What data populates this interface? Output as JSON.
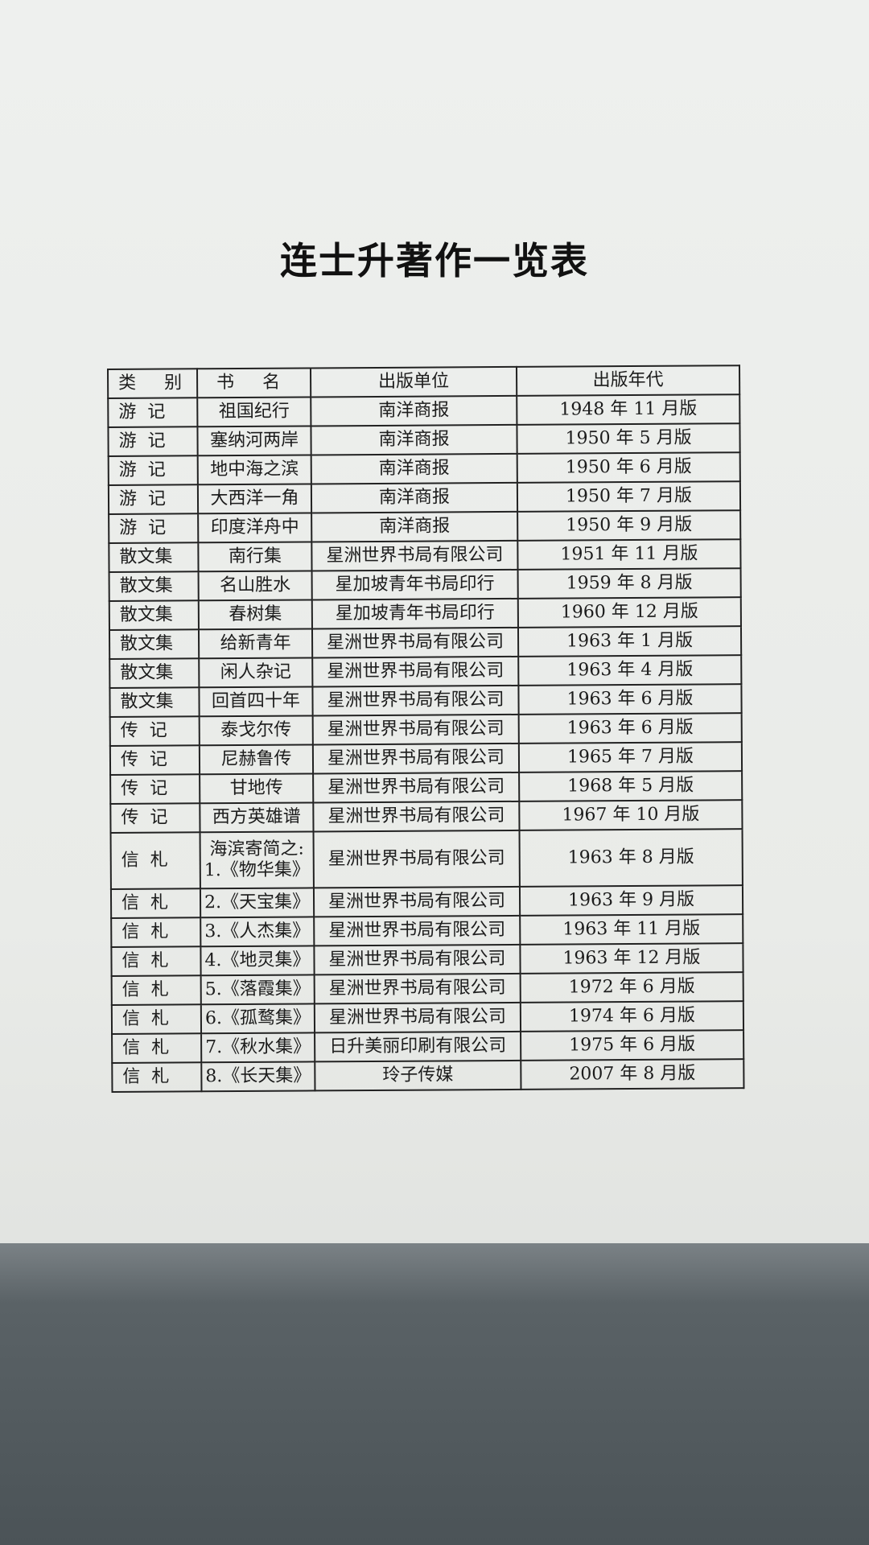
{
  "title": "连士升著作一览表",
  "table": {
    "headers": [
      "类  别",
      "书  名",
      "出版单位",
      "出版年代"
    ],
    "rows": [
      {
        "category": "游记",
        "title": "祖国纪行",
        "publisher": "南洋商报",
        "date": "1948 年 11 月版"
      },
      {
        "category": "游记",
        "title": "塞纳河两岸",
        "publisher": "南洋商报",
        "date": "1950 年 5 月版"
      },
      {
        "category": "游记",
        "title": "地中海之滨",
        "publisher": "南洋商报",
        "date": "1950 年 6 月版"
      },
      {
        "category": "游记",
        "title": "大西洋一角",
        "publisher": "南洋商报",
        "date": "1950 年 7 月版"
      },
      {
        "category": "游记",
        "title": "印度洋舟中",
        "publisher": "南洋商报",
        "date": "1950 年 9 月版"
      },
      {
        "category": "散文集",
        "title": "南行集",
        "publisher": "星洲世界书局有限公司",
        "date": "1951 年 11 月版"
      },
      {
        "category": "散文集",
        "title": "名山胜水",
        "publisher": "星加坡青年书局印行",
        "date": "1959 年 8 月版"
      },
      {
        "category": "散文集",
        "title": "春树集",
        "publisher": "星加坡青年书局印行",
        "date": "1960 年 12 月版"
      },
      {
        "category": "散文集",
        "title": "给新青年",
        "publisher": "星洲世界书局有限公司",
        "date": "1963 年 1 月版"
      },
      {
        "category": "散文集",
        "title": "闲人杂记",
        "publisher": "星洲世界书局有限公司",
        "date": "1963 年 4 月版"
      },
      {
        "category": "散文集",
        "title": "回首四十年",
        "publisher": "星洲世界书局有限公司",
        "date": "1963 年 6 月版"
      },
      {
        "category": "传记",
        "title": "泰戈尔传",
        "publisher": "星洲世界书局有限公司",
        "date": "1963 年 6 月版"
      },
      {
        "category": "传记",
        "title": "尼赫鲁传",
        "publisher": "星洲世界书局有限公司",
        "date": "1965 年 7 月版"
      },
      {
        "category": "传记",
        "title": "甘地传",
        "publisher": "星洲世界书局有限公司",
        "date": "1968 年 5 月版"
      },
      {
        "category": "传记",
        "title": "西方英雄谱",
        "publisher": "星洲世界书局有限公司",
        "date": "1967 年 10 月版"
      },
      {
        "category": "信札",
        "title_prefix": "海滨寄简之:",
        "title": "1.《物华集》",
        "publisher": "星洲世界书局有限公司",
        "date": "1963 年 8 月版"
      },
      {
        "category": "信札",
        "title": "2.《天宝集》",
        "publisher": "星洲世界书局有限公司",
        "date": "1963 年 9 月版"
      },
      {
        "category": "信札",
        "title": "3.《人杰集》",
        "publisher": "星洲世界书局有限公司",
        "date": "1963 年 11 月版"
      },
      {
        "category": "信札",
        "title": "4.《地灵集》",
        "publisher": "星洲世界书局有限公司",
        "date": "1963 年 12 月版"
      },
      {
        "category": "信札",
        "title": "5.《落霞集》",
        "publisher": "星洲世界书局有限公司",
        "date": "1972 年 6 月版"
      },
      {
        "category": "信札",
        "title": "6.《孤鹜集》",
        "publisher": "星洲世界书局有限公司",
        "date": "1974 年 6 月版"
      },
      {
        "category": "信札",
        "title": "7.《秋水集》",
        "publisher": "日升美丽印刷有限公司",
        "date": "1975 年 6 月版"
      },
      {
        "category": "信札",
        "title": "8.《长天集》",
        "publisher": "玲子传媒",
        "date": "2007 年 8 月版"
      }
    ]
  }
}
